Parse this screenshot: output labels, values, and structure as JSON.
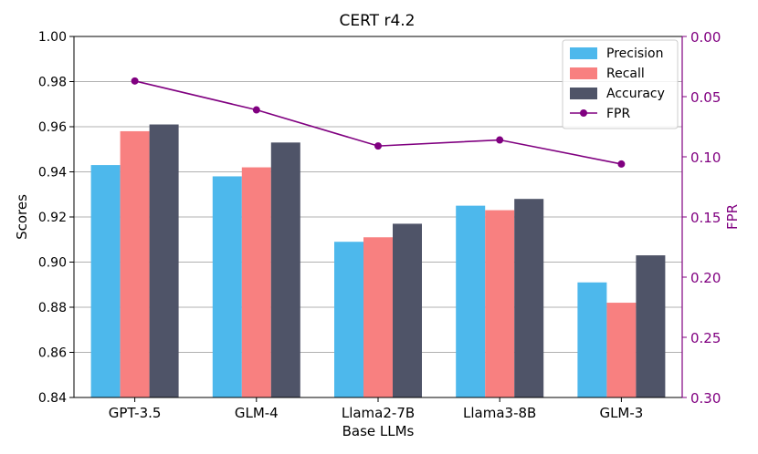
{
  "chart_data": {
    "type": "bar",
    "title": "CERT r4.2",
    "xlabel": "Base LLMs",
    "ylabel": "Scores",
    "y2label": "FPR",
    "categories": [
      "GPT-3.5",
      "GLM-4",
      "Llama2-7B",
      "Llama3-8B",
      "GLM-3"
    ],
    "ylim": [
      0.84,
      1.0
    ],
    "yticks": [
      "0.84",
      "0.86",
      "0.88",
      "0.90",
      "0.92",
      "0.94",
      "0.96",
      "0.98",
      "1.00"
    ],
    "y2lim": [
      0.3,
      0.0
    ],
    "y2ticks": [
      "0.00",
      "0.05",
      "0.10",
      "0.15",
      "0.20",
      "0.25",
      "0.30"
    ],
    "grid": true,
    "legend_position": "top-right",
    "series": [
      {
        "name": "Precision",
        "type": "bar",
        "color": "#4db8ec",
        "values": [
          0.943,
          0.938,
          0.909,
          0.925,
          0.891
        ]
      },
      {
        "name": "Recall",
        "type": "bar",
        "color": "#f88080",
        "values": [
          0.958,
          0.942,
          0.911,
          0.923,
          0.882
        ]
      },
      {
        "name": "Accuracy",
        "type": "bar",
        "color": "#4f5468",
        "values": [
          0.961,
          0.953,
          0.917,
          0.928,
          0.903
        ]
      },
      {
        "name": "FPR",
        "type": "line",
        "axis": "right",
        "color": "#800080",
        "values": [
          0.037,
          0.061,
          0.091,
          0.086,
          0.106
        ]
      }
    ]
  }
}
